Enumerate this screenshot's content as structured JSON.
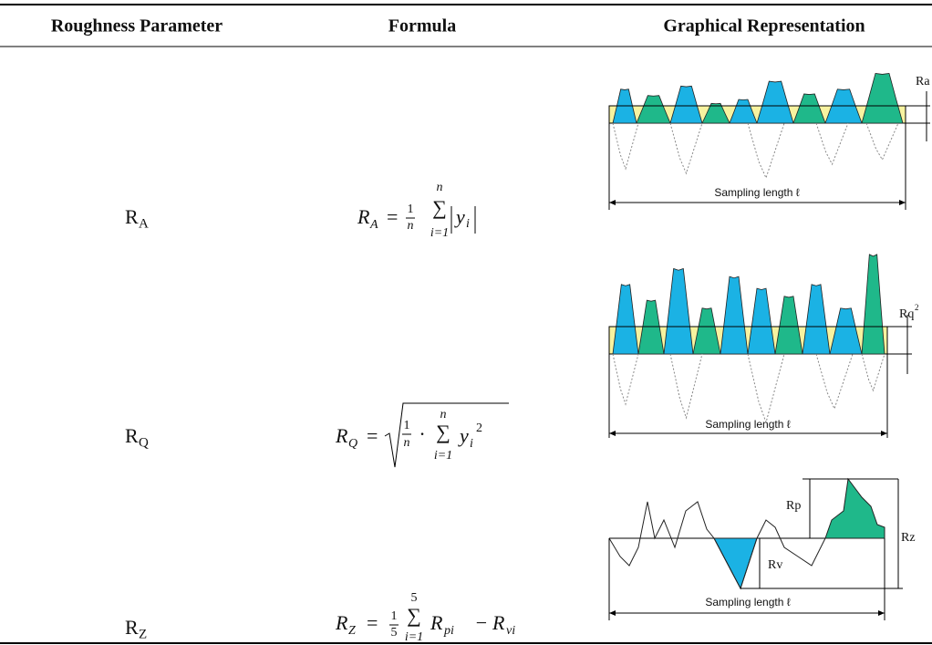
{
  "table": {
    "headers": [
      "Roughness Parameter",
      "Formula",
      "Graphical Representation"
    ],
    "rows": [
      {
        "parameter": {
          "base": "R",
          "sub": "A"
        },
        "formula": {
          "base": "R",
          "sub": "A",
          "equals": "=",
          "num": "1",
          "den": "n",
          "sum": "∑",
          "upper": "n",
          "lower": "i=1",
          "term": "y",
          "term_sub": "i"
        },
        "figure": {
          "label": "Ra",
          "length": "Sampling length ℓ"
        }
      },
      {
        "parameter": {
          "base": "R",
          "sub": "Q"
        },
        "formula": {
          "base": "R",
          "sub": "Q",
          "equals": "=",
          "num": "1",
          "den": "n",
          "dot": "·",
          "sum": "∑",
          "upper": "n",
          "lower": "i=1",
          "term": "y",
          "term_sub": "i",
          "power": "2"
        },
        "figure": {
          "label": "Rq",
          "label_sup": "2",
          "length": "Sampling length ℓ"
        }
      },
      {
        "parameter": {
          "base": "R",
          "sub": "Z"
        },
        "formula": {
          "base": "R",
          "sub": "Z",
          "equals": "=",
          "num": "1",
          "den": "5",
          "sum": "∑",
          "upper": "5",
          "lower": "i=1",
          "term1": "R",
          "term1_sub": "pi",
          "minus": "−",
          "term2": "R",
          "term2_sub": "vi"
        },
        "figure": {
          "peak": "Rp",
          "valley": "Rv",
          "total": "Rz",
          "length": "Sampling length ℓ"
        }
      }
    ]
  }
}
